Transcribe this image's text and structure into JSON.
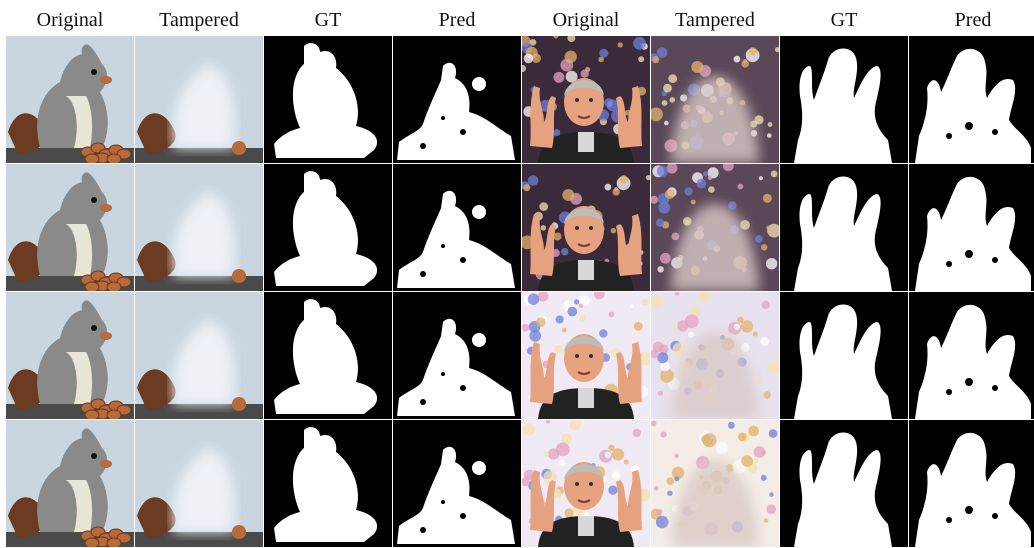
{
  "figure": {
    "column_labels": [
      "Original",
      "Tampered",
      "GT",
      "Pred",
      "Original",
      "Tampered",
      "GT",
      "Pred"
    ],
    "left_group": {
      "subject": "squirrel"
    },
    "right_group": {
      "subject": "man-gesturing"
    },
    "rows": 4,
    "colors": {
      "mask_fg": "#ffffff",
      "mask_bg": "#000000",
      "squirrel_sky": "#c9d6e0",
      "squirrel_fur": "#8a8a8a",
      "squirrel_belly": "#e9e4d8",
      "squirrel_tail": "#6b3b22",
      "nut": "#b96a3a",
      "ground": "#4a4a4a",
      "man_suit": "#222222",
      "man_skin": "#e6a27e",
      "man_hair": "#bcbcbc",
      "bokeh_warm": "#e3b26a",
      "bokeh_pink": "#e6a1c0",
      "bokeh_blue": "#6f7fd8"
    }
  }
}
